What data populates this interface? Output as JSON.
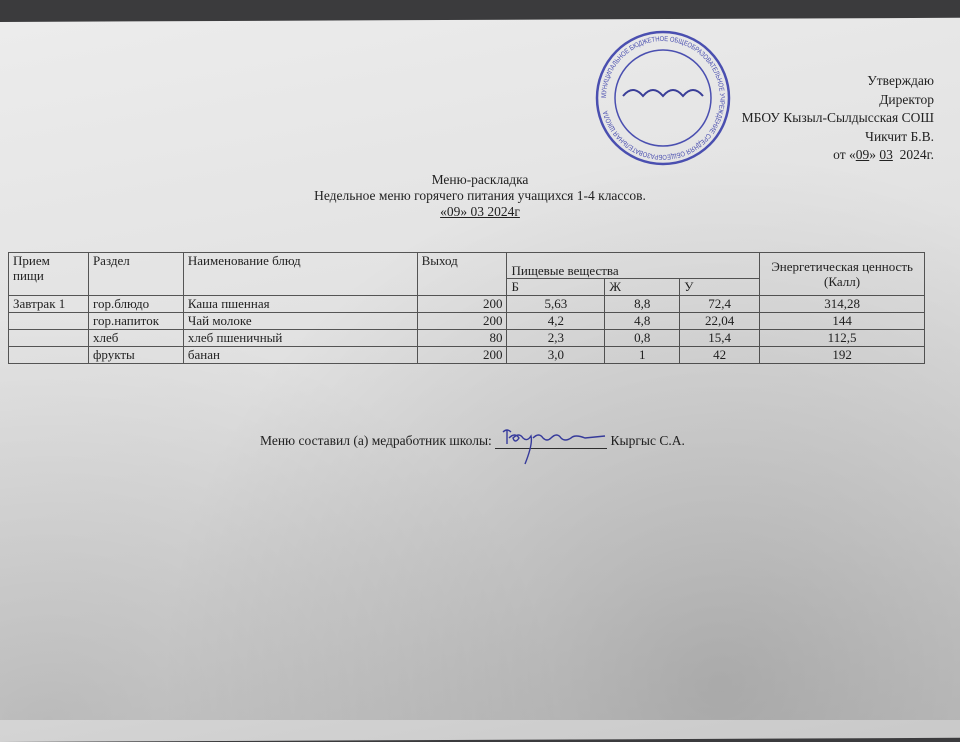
{
  "approval": {
    "line1": "Утверждаю",
    "line2": "Директор",
    "line3": "МБОУ Кызыл-Сылдысская СОШ",
    "line4": "Чикчит Б.В.",
    "line5_prefix": "от «",
    "day": "09",
    "sep": "»",
    "month": "03",
    "year": "2024",
    "suffix": "г."
  },
  "stamp": {
    "text": "МУНИЦИПАЛЬНОЕ БЮДЖЕТНОЕ ОБЩЕОБРАЗОВАТЕЛЬНОЕ УЧРЕЖДЕНИЕ СРЕДНЯЯ ОБЩЕОБРАЗОВАТЕЛЬНАЯ ШКОЛА",
    "color": "#4a4fb0"
  },
  "title": "Меню-раскладка",
  "subtitle": "Недельное меню горячего питания учащихся 1-4 классов.",
  "date": "«09» 03  2024г",
  "table": {
    "headers": {
      "meal": "Прием пищи",
      "section": "Раздел",
      "dish": "Наименование блюд",
      "yield": "Выход",
      "nutrients": "Пищевые вещества",
      "b": "Б",
      "zh": "Ж",
      "u": "У",
      "energy": "Энергетическая ценность (Калл)"
    },
    "rows": [
      {
        "meal": "Завтрак 1",
        "section": "гор.блюдо",
        "dish": "Каша пшенная",
        "yield": "200",
        "b": "5,63",
        "zh": "8,8",
        "u": "72,4",
        "energy": "314,28"
      },
      {
        "meal": "",
        "section": "гор.напиток",
        "dish": "Чай молоке",
        "yield": "200",
        "b": "4,2",
        "zh": "4,8",
        "u": "22,04",
        "energy": "144"
      },
      {
        "meal": "",
        "section": "хлеб",
        "dish": "хлеб пшеничный",
        "yield": "80",
        "b": "2,3",
        "zh": "0,8",
        "u": "15,4",
        "energy": "112,5"
      },
      {
        "meal": "",
        "section": "фрукты",
        "dish": "банан",
        "yield": "200",
        "b": "3,0",
        "zh": "1",
        "u": "42",
        "energy": "192"
      }
    ]
  },
  "footer": {
    "label": "Меню составил (а) медработник школы:",
    "name": "Кыргыс С.А."
  }
}
